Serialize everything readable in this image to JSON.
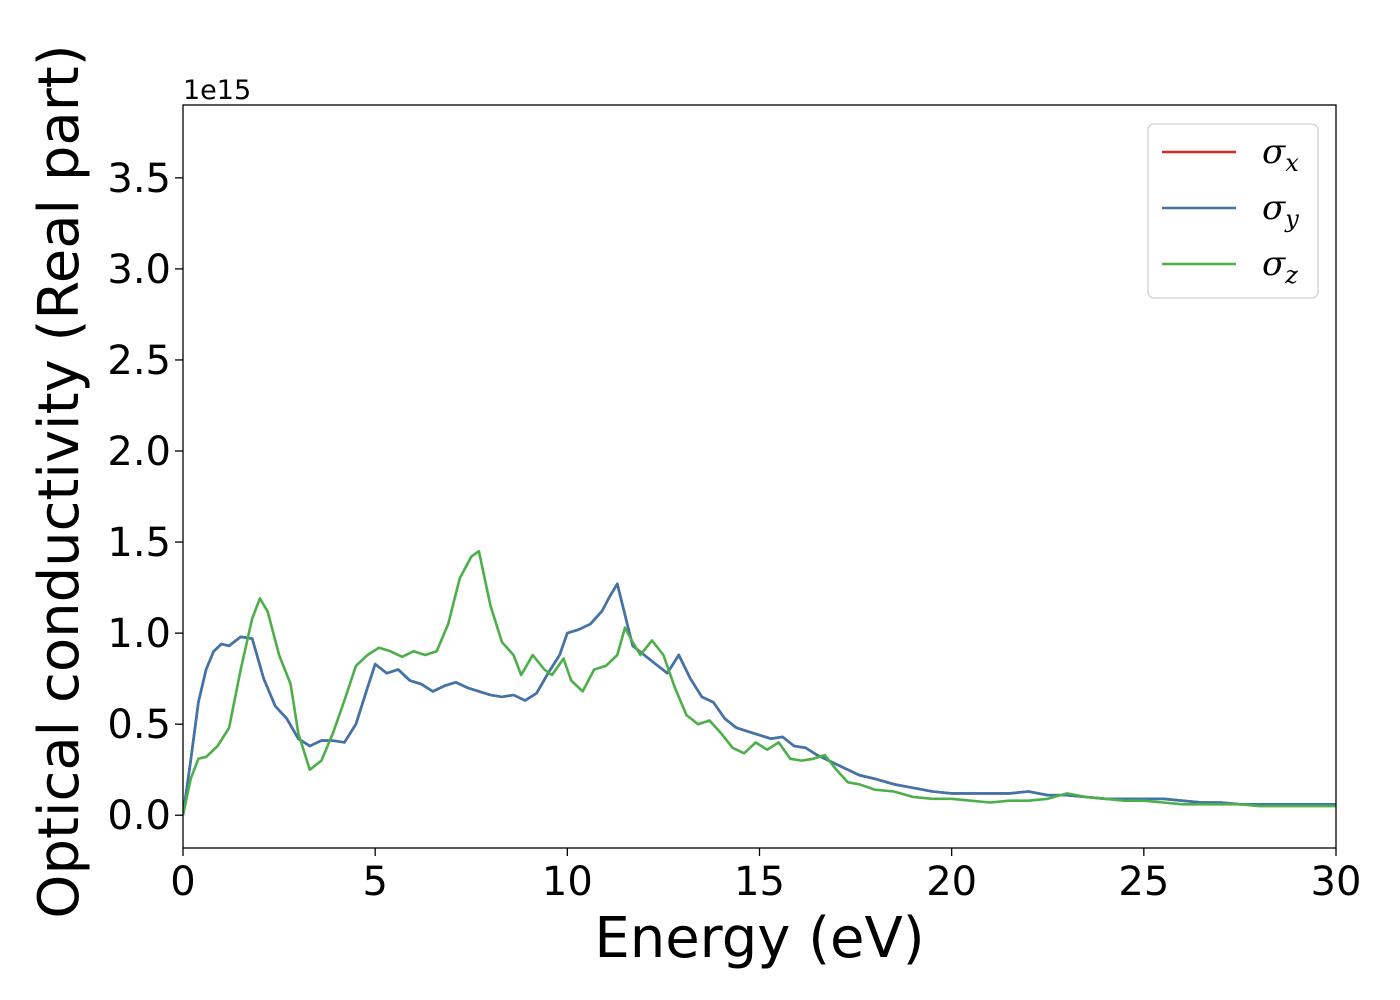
{
  "chart_data": {
    "type": "line",
    "title": "",
    "xlabel": "Energy (eV)",
    "ylabel": "Optical conductivity (Real part)",
    "y_offset_label": "1e15",
    "xlim": [
      0,
      30
    ],
    "ylim": [
      -0.18,
      3.9
    ],
    "x_ticks": [
      0,
      5,
      10,
      15,
      20,
      25,
      30
    ],
    "x_tick_labels": [
      "0",
      "5",
      "10",
      "15",
      "20",
      "25",
      "30"
    ],
    "y_ticks": [
      0.0,
      0.5,
      1.0,
      1.5,
      2.0,
      2.5,
      3.0,
      3.5
    ],
    "y_tick_labels": [
      "0.0",
      "0.5",
      "1.0",
      "1.5",
      "2.0",
      "2.5",
      "3.0",
      "3.5"
    ],
    "grid": false,
    "legend_position": "top-right",
    "series": [
      {
        "name": "σx",
        "legend_symbol": "σ",
        "legend_subscript": "x",
        "color": "#d62728",
        "x": [
          0,
          0.2,
          0.4,
          0.6,
          0.8,
          1.0,
          1.2,
          1.5,
          1.8,
          2.1,
          2.4,
          2.7,
          3.0,
          3.3,
          3.6,
          3.9,
          4.2,
          4.5,
          4.8,
          5.0,
          5.3,
          5.6,
          5.9,
          6.2,
          6.5,
          6.8,
          7.1,
          7.4,
          7.7,
          8.0,
          8.3,
          8.6,
          8.9,
          9.2,
          9.5,
          9.8,
          10.0,
          10.3,
          10.6,
          10.9,
          11.1,
          11.3,
          11.5,
          11.7,
          12.0,
          12.3,
          12.6,
          12.9,
          13.2,
          13.5,
          13.8,
          14.1,
          14.4,
          14.7,
          15.0,
          15.3,
          15.6,
          15.9,
          16.2,
          16.5,
          16.8,
          17.2,
          17.6,
          18.0,
          18.5,
          19.0,
          19.5,
          20.0,
          20.5,
          21.0,
          21.5,
          22.0,
          22.5,
          23.0,
          23.5,
          24.0,
          24.5,
          25.0,
          25.5,
          26.0,
          26.5,
          27.0,
          27.5,
          28.0,
          28.5,
          29.0,
          29.5,
          30.0
        ],
        "y": [
          0.0,
          0.3,
          0.62,
          0.8,
          0.9,
          0.94,
          0.93,
          0.98,
          0.97,
          0.75,
          0.6,
          0.53,
          0.42,
          0.38,
          0.41,
          0.41,
          0.4,
          0.5,
          0.7,
          0.83,
          0.78,
          0.8,
          0.74,
          0.72,
          0.68,
          0.71,
          0.73,
          0.7,
          0.68,
          0.66,
          0.65,
          0.66,
          0.63,
          0.67,
          0.78,
          0.88,
          1.0,
          1.02,
          1.05,
          1.12,
          1.2,
          1.27,
          1.1,
          0.93,
          0.88,
          0.83,
          0.78,
          0.88,
          0.75,
          0.65,
          0.62,
          0.53,
          0.48,
          0.46,
          0.44,
          0.42,
          0.43,
          0.38,
          0.37,
          0.33,
          0.3,
          0.26,
          0.22,
          0.2,
          0.17,
          0.15,
          0.13,
          0.12,
          0.12,
          0.12,
          0.12,
          0.13,
          0.11,
          0.11,
          0.1,
          0.09,
          0.09,
          0.09,
          0.09,
          0.08,
          0.07,
          0.07,
          0.06,
          0.06,
          0.06,
          0.06,
          0.06,
          0.06
        ]
      },
      {
        "name": "σy",
        "legend_symbol": "σ",
        "legend_subscript": "y",
        "color": "#3d75ad",
        "x": [
          0,
          0.2,
          0.4,
          0.6,
          0.8,
          1.0,
          1.2,
          1.5,
          1.8,
          2.1,
          2.4,
          2.7,
          3.0,
          3.3,
          3.6,
          3.9,
          4.2,
          4.5,
          4.8,
          5.0,
          5.3,
          5.6,
          5.9,
          6.2,
          6.5,
          6.8,
          7.1,
          7.4,
          7.7,
          8.0,
          8.3,
          8.6,
          8.9,
          9.2,
          9.5,
          9.8,
          10.0,
          10.3,
          10.6,
          10.9,
          11.1,
          11.3,
          11.5,
          11.7,
          12.0,
          12.3,
          12.6,
          12.9,
          13.2,
          13.5,
          13.8,
          14.1,
          14.4,
          14.7,
          15.0,
          15.3,
          15.6,
          15.9,
          16.2,
          16.5,
          16.8,
          17.2,
          17.6,
          18.0,
          18.5,
          19.0,
          19.5,
          20.0,
          20.5,
          21.0,
          21.5,
          22.0,
          22.5,
          23.0,
          23.5,
          24.0,
          24.5,
          25.0,
          25.5,
          26.0,
          26.5,
          27.0,
          27.5,
          28.0,
          28.5,
          29.0,
          29.5,
          30.0
        ],
        "y": [
          0.0,
          0.3,
          0.62,
          0.8,
          0.9,
          0.94,
          0.93,
          0.98,
          0.97,
          0.75,
          0.6,
          0.53,
          0.42,
          0.38,
          0.41,
          0.41,
          0.4,
          0.5,
          0.7,
          0.83,
          0.78,
          0.8,
          0.74,
          0.72,
          0.68,
          0.71,
          0.73,
          0.7,
          0.68,
          0.66,
          0.65,
          0.66,
          0.63,
          0.67,
          0.78,
          0.88,
          1.0,
          1.02,
          1.05,
          1.12,
          1.2,
          1.27,
          1.1,
          0.93,
          0.88,
          0.83,
          0.78,
          0.88,
          0.75,
          0.65,
          0.62,
          0.53,
          0.48,
          0.46,
          0.44,
          0.42,
          0.43,
          0.38,
          0.37,
          0.33,
          0.3,
          0.26,
          0.22,
          0.2,
          0.17,
          0.15,
          0.13,
          0.12,
          0.12,
          0.12,
          0.12,
          0.13,
          0.11,
          0.11,
          0.1,
          0.09,
          0.09,
          0.09,
          0.09,
          0.08,
          0.07,
          0.07,
          0.06,
          0.06,
          0.06,
          0.06,
          0.06,
          0.06
        ]
      },
      {
        "name": "σz",
        "legend_symbol": "σ",
        "legend_subscript": "z",
        "color": "#4daf4a",
        "x": [
          0,
          0.2,
          0.4,
          0.6,
          0.9,
          1.2,
          1.5,
          1.8,
          2.0,
          2.2,
          2.5,
          2.8,
          3.0,
          3.3,
          3.6,
          3.9,
          4.2,
          4.5,
          4.8,
          5.1,
          5.4,
          5.7,
          6.0,
          6.3,
          6.6,
          6.9,
          7.2,
          7.5,
          7.7,
          8.0,
          8.3,
          8.6,
          8.8,
          9.1,
          9.4,
          9.6,
          9.9,
          10.1,
          10.4,
          10.7,
          11.0,
          11.3,
          11.5,
          11.7,
          11.9,
          12.2,
          12.5,
          12.8,
          13.1,
          13.4,
          13.7,
          14.0,
          14.3,
          14.6,
          14.9,
          15.2,
          15.5,
          15.8,
          16.1,
          16.4,
          16.7,
          17.0,
          17.3,
          17.6,
          18.0,
          18.5,
          19.0,
          19.5,
          20.0,
          20.5,
          21.0,
          21.5,
          22.0,
          22.5,
          23.0,
          23.5,
          24.0,
          24.5,
          25.0,
          25.5,
          26.0,
          26.5,
          27.0,
          27.5,
          28.0,
          28.5,
          29.0,
          29.5,
          30.0
        ],
        "y": [
          0.0,
          0.2,
          0.31,
          0.32,
          0.38,
          0.48,
          0.8,
          1.08,
          1.19,
          1.12,
          0.88,
          0.72,
          0.45,
          0.25,
          0.3,
          0.45,
          0.63,
          0.82,
          0.88,
          0.92,
          0.9,
          0.87,
          0.9,
          0.88,
          0.9,
          1.05,
          1.3,
          1.42,
          1.45,
          1.15,
          0.95,
          0.88,
          0.77,
          0.88,
          0.8,
          0.77,
          0.86,
          0.74,
          0.68,
          0.8,
          0.82,
          0.88,
          1.03,
          0.95,
          0.88,
          0.96,
          0.88,
          0.7,
          0.55,
          0.5,
          0.52,
          0.45,
          0.37,
          0.34,
          0.4,
          0.36,
          0.4,
          0.31,
          0.3,
          0.31,
          0.33,
          0.25,
          0.18,
          0.17,
          0.14,
          0.13,
          0.1,
          0.09,
          0.09,
          0.08,
          0.07,
          0.08,
          0.08,
          0.09,
          0.12,
          0.1,
          0.09,
          0.08,
          0.08,
          0.07,
          0.06,
          0.06,
          0.06,
          0.06,
          0.05,
          0.05,
          0.05,
          0.05,
          0.05
        ]
      }
    ]
  }
}
